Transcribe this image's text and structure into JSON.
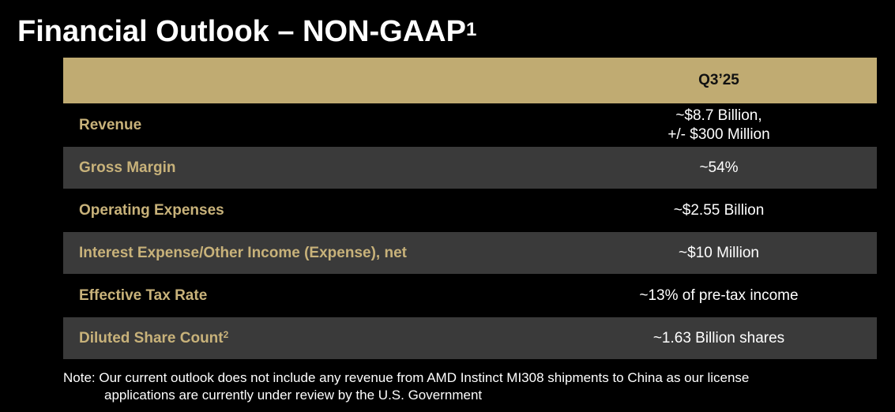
{
  "title": {
    "text": "Financial Outlook – NON-GAAP",
    "superscript": "1"
  },
  "colors": {
    "background": "#000000",
    "header_band": "#c0ab72",
    "label_gold": "#c8b27a",
    "row_dark": "#000000",
    "row_gray": "#3a3a3a",
    "text_white": "#ffffff"
  },
  "table": {
    "column_header": "Q3’25",
    "rows": [
      {
        "label": "Revenue",
        "label_sup": "",
        "value_lines": [
          "~$8.7 Billion,",
          "+/- $300 Million"
        ],
        "shade": "dark"
      },
      {
        "label": "Gross Margin",
        "label_sup": "",
        "value_lines": [
          "~54%"
        ],
        "shade": "gray"
      },
      {
        "label": "Operating Expenses",
        "label_sup": "",
        "value_lines": [
          "~$2.55 Billion"
        ],
        "shade": "dark"
      },
      {
        "label": "Interest Expense/Other Income (Expense), net",
        "label_sup": "",
        "value_lines": [
          "~$10 Million"
        ],
        "shade": "gray"
      },
      {
        "label": "Effective Tax Rate",
        "label_sup": "",
        "value_lines": [
          "~13% of pre-tax income"
        ],
        "shade": "dark"
      },
      {
        "label": "Diluted Share Count",
        "label_sup": "2",
        "value_lines": [
          "~1.63 Billion shares"
        ],
        "shade": "gray"
      }
    ]
  },
  "note": {
    "line1": "Note: Our current outlook does not include any revenue from AMD Instinct MI308 shipments to China as our license",
    "line2": "applications are currently under review by the U.S. Government"
  }
}
